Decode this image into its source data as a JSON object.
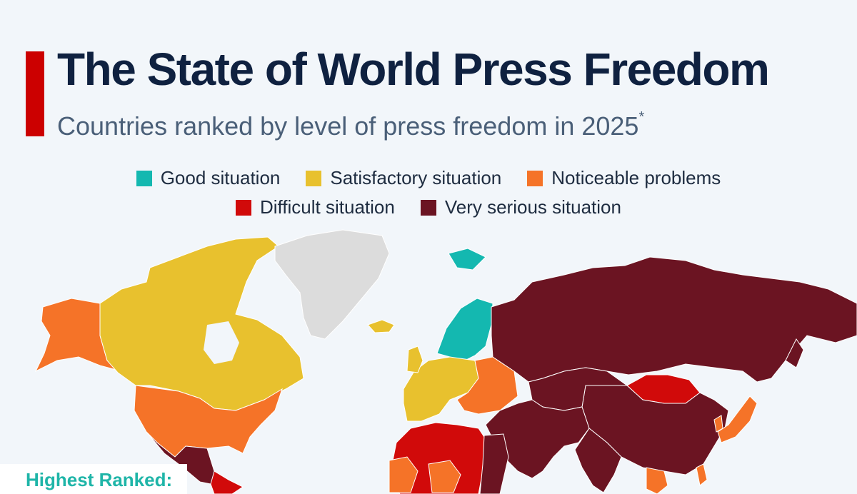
{
  "title": "The State of World Press Freedom",
  "subtitle": "Countries ranked by level of press freedom in 2025",
  "subtitle_footnote_mark": "*",
  "legend": [
    {
      "label": "Good situation",
      "color": "#14b8b0"
    },
    {
      "label": "Satisfactory situation",
      "color": "#e8c12e"
    },
    {
      "label": "Noticeable problems",
      "color": "#f57328"
    },
    {
      "label": "Difficult situation",
      "color": "#d10a0a"
    },
    {
      "label": "Very serious situation",
      "color": "#6b1422"
    }
  ],
  "colors": {
    "accent": "#cc0000",
    "no_data": "#dcdcdc",
    "background": "#f2f6fa",
    "title": "#0f2140"
  },
  "highest_ranked_label": "Highest Ranked:",
  "regions": [
    {
      "name": "Alaska",
      "category": "Noticeable problems"
    },
    {
      "name": "Canada",
      "category": "Satisfactory situation"
    },
    {
      "name": "Greenland",
      "category": "No data"
    },
    {
      "name": "United States",
      "category": "Noticeable problems"
    },
    {
      "name": "Mexico",
      "category": "Very serious situation"
    },
    {
      "name": "Central America",
      "category": "Difficult situation"
    },
    {
      "name": "Iceland",
      "category": "Satisfactory situation"
    },
    {
      "name": "Svalbard",
      "category": "Good situation"
    },
    {
      "name": "Scandinavia",
      "category": "Good situation"
    },
    {
      "name": "Western Europe",
      "category": "Satisfactory situation"
    },
    {
      "name": "Eastern Europe",
      "category": "Noticeable problems"
    },
    {
      "name": "Russia",
      "category": "Very serious situation"
    },
    {
      "name": "Mongolia",
      "category": "Difficult situation"
    },
    {
      "name": "China",
      "category": "Very serious situation"
    },
    {
      "name": "Japan",
      "category": "Noticeable problems"
    },
    {
      "name": "Middle East",
      "category": "Very serious situation"
    },
    {
      "name": "North Africa",
      "category": "Difficult situation"
    },
    {
      "name": "West Africa",
      "category": "Noticeable problems"
    },
    {
      "name": "Egypt",
      "category": "Very serious situation"
    },
    {
      "name": "Southeast Asia",
      "category": "Noticeable problems"
    }
  ]
}
